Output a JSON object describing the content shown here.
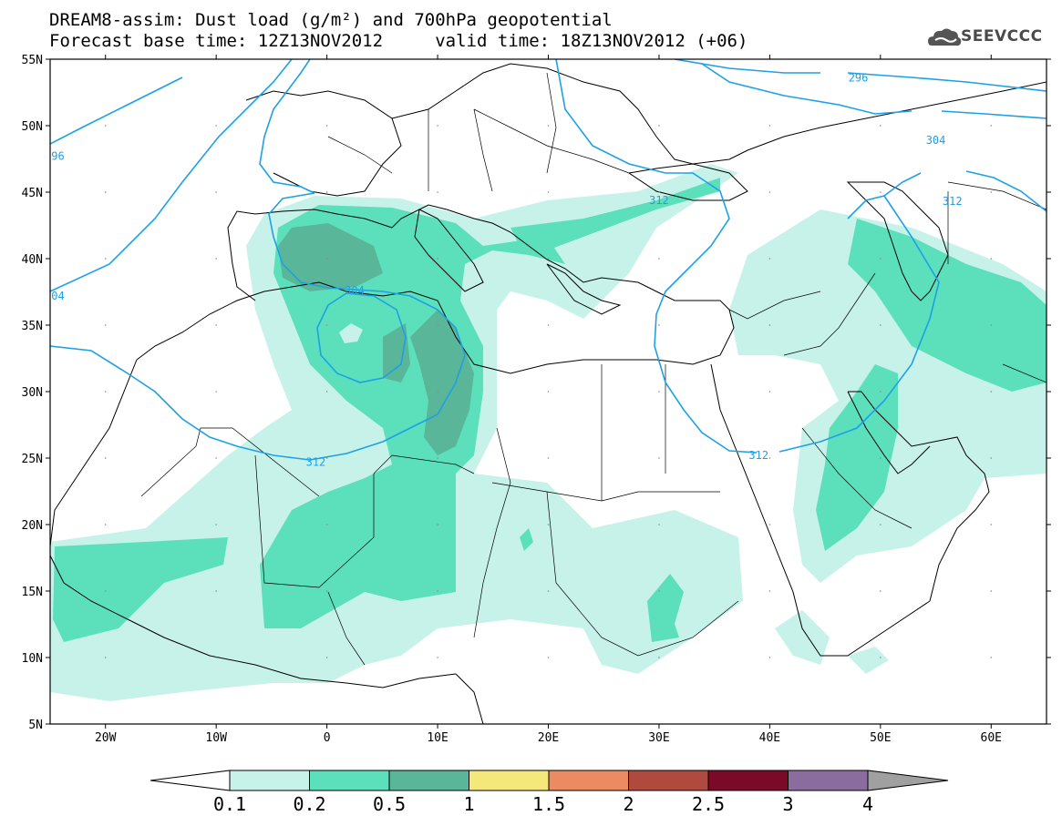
{
  "header": {
    "title_line1": "DREAM8-assim: Dust load (g/m²) and 700hPa geopotential",
    "title_line2": "Forecast base time: 12Z13NOV2012     valid time: 18Z13NOV2012 (+06)",
    "logo_text": "SEEVCCC"
  },
  "map": {
    "lat_labels": [
      "55N",
      "50N",
      "45N",
      "40N",
      "35N",
      "30N",
      "25N",
      "20N",
      "15N",
      "10N",
      "5N"
    ],
    "lon_labels": [
      "20W",
      "10W",
      "0",
      "10E",
      "20E",
      "30E",
      "40E",
      "50E",
      "60E"
    ],
    "contour_labels": [
      {
        "text": "296",
        "lon": 48,
        "lat": 53.6
      },
      {
        "text": "304",
        "lon": 55,
        "lat": 48.9
      },
      {
        "text": "312",
        "lon": 56.5,
        "lat": 44.3
      },
      {
        "text": "312",
        "lon": 30,
        "lat": 44.4
      },
      {
        "text": "96",
        "lon": -24.3,
        "lat": 47.7
      },
      {
        "text": "304",
        "lon": 2.5,
        "lat": 37.6
      },
      {
        "text": "04",
        "lon": -24.3,
        "lat": 37.2
      },
      {
        "text": "312",
        "lon": -1,
        "lat": 24.7
      },
      {
        "text": "312",
        "lon": 39,
        "lat": 25.2
      }
    ],
    "colors": {
      "coast": "#000000",
      "contour": "#1ea0e6",
      "level1": "#c7f2ea",
      "level2": "#5ce0bc",
      "level3": "#5ab698"
    }
  },
  "colorbar": {
    "labels": [
      "0.1",
      "0.2",
      "0.5",
      "1",
      "1.5",
      "2",
      "2.5",
      "3",
      "4"
    ],
    "colors": [
      "#c7f2ea",
      "#5ce0bc",
      "#5ab698",
      "#f5e87a",
      "#ec8b62",
      "#b14a3e",
      "#7a0a28",
      "#8b6c9e"
    ],
    "arrow_low": "#ffffff",
    "arrow_high": "#a0a0a0"
  }
}
